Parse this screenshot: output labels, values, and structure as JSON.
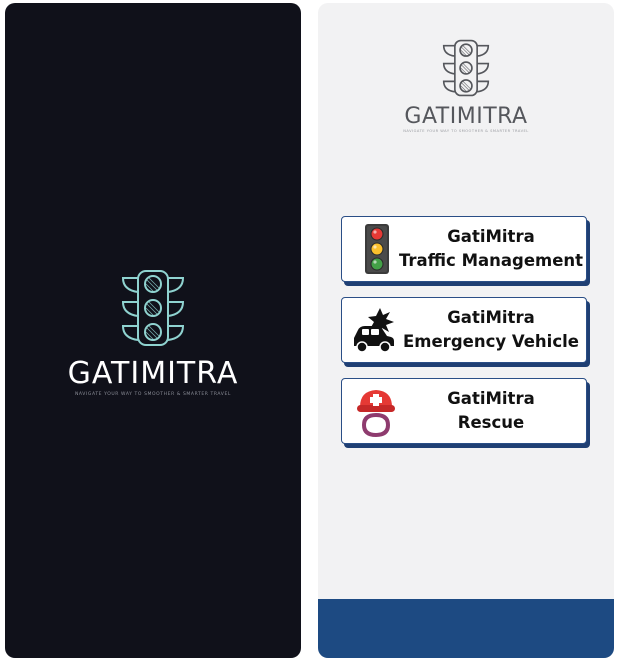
{
  "splash": {
    "brand": "GATIMITRA",
    "tagline": "NAVIGATE YOUR WAY TO SMOOTHER & SMARTER TRAVEL",
    "logo_icon": "traffic-light-icon"
  },
  "menu": {
    "brand": "GATIMITRA",
    "tagline": "NAVIGATE YOUR WAY TO SMOOTHER & SMARTER TRAVEL",
    "logo_icon": "traffic-light-icon",
    "options": [
      {
        "line1": "GatiMitra",
        "line2": "Traffic Management",
        "icon": "traffic-signal-icon"
      },
      {
        "line1": "GatiMitra",
        "line2": "Emergency Vehicle",
        "icon": "car-crash-icon"
      },
      {
        "line1": "GatiMitra",
        "line2": "Rescue",
        "icon": "rescue-worker-icon"
      }
    ]
  },
  "colors": {
    "splash_bg": "#10111a",
    "menu_bg": "#f2f2f3",
    "accent_blue": "#1d4a82",
    "logo_teal": "#8fd3d0"
  }
}
